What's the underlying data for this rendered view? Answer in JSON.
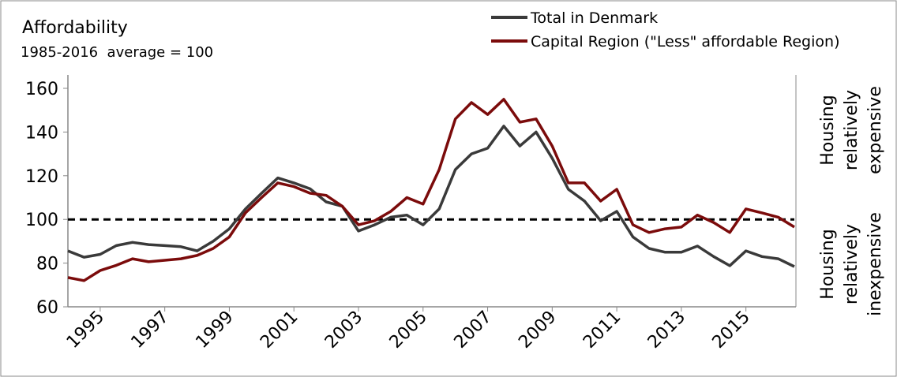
{
  "chart_data": {
    "type": "line",
    "title": "Affordability",
    "subtitle": "1985-2016  average = 100",
    "annotations": [
      {
        "lines": [
          "Housing",
          "relatively",
          "expensive"
        ]
      },
      {
        "lines": [
          "Housing",
          "relatively",
          "inexpensive"
        ]
      }
    ],
    "reference_line": 100,
    "x": [
      1994,
      1994.5,
      1995,
      1995.5,
      1996,
      1996.5,
      1997,
      1997.5,
      1998,
      1998.5,
      1999,
      1999.5,
      2000,
      2000.5,
      2001,
      2001.5,
      2002,
      2002.5,
      2003,
      2003.5,
      2004,
      2004.5,
      2005,
      2005.5,
      2006,
      2006.5,
      2007,
      2007.5,
      2008,
      2008.5,
      2009,
      2009.5,
      2010,
      2010.5,
      2011,
      2011.5,
      2012,
      2012.5,
      2013,
      2013.5,
      2014,
      2014.5,
      2015,
      2015.5,
      2016,
      2016.5
    ],
    "series": [
      {
        "name": "Total in Denmark",
        "color": "#3a3a3a",
        "values": [
          85.6,
          82.7,
          84,
          88,
          89.5,
          88.5,
          88,
          87.5,
          85.6,
          90,
          95.7,
          104.8,
          112,
          119,
          116.7,
          114,
          108,
          106,
          94.7,
          97.5,
          101,
          102,
          97.5,
          104.8,
          122.8,
          130,
          132.6,
          142.7,
          133.6,
          140,
          128,
          113.8,
          108.4,
          99.4,
          103.7,
          92,
          86.7,
          85,
          85,
          87.8,
          83,
          78.8,
          85.6,
          83,
          82,
          78.4
        ]
      },
      {
        "name": "Capital Region (\"Less\" affordable Region)",
        "color": "#7b0b0b",
        "values": [
          73.4,
          72,
          76.6,
          79,
          82,
          80.6,
          81.3,
          82,
          83.5,
          86.7,
          92,
          103,
          110,
          116.7,
          115,
          112,
          111,
          106,
          97.5,
          99.4,
          103.7,
          110,
          107,
          122.8,
          146,
          153.5,
          148,
          155,
          144.5,
          146,
          133.6,
          116.7,
          116.7,
          108.4,
          113.8,
          97.5,
          94,
          95.7,
          96.5,
          102,
          98.6,
          94,
          104.8,
          103,
          101,
          96.5
        ]
      }
    ],
    "xlim": [
      1994,
      2016.5
    ],
    "xticks": [
      1995,
      1997,
      1999,
      2001,
      2003,
      2005,
      2007,
      2009,
      2011,
      2013,
      2015
    ],
    "ylim": [
      60,
      160
    ],
    "yticks": [
      60,
      80,
      100,
      120,
      140,
      160
    ]
  }
}
